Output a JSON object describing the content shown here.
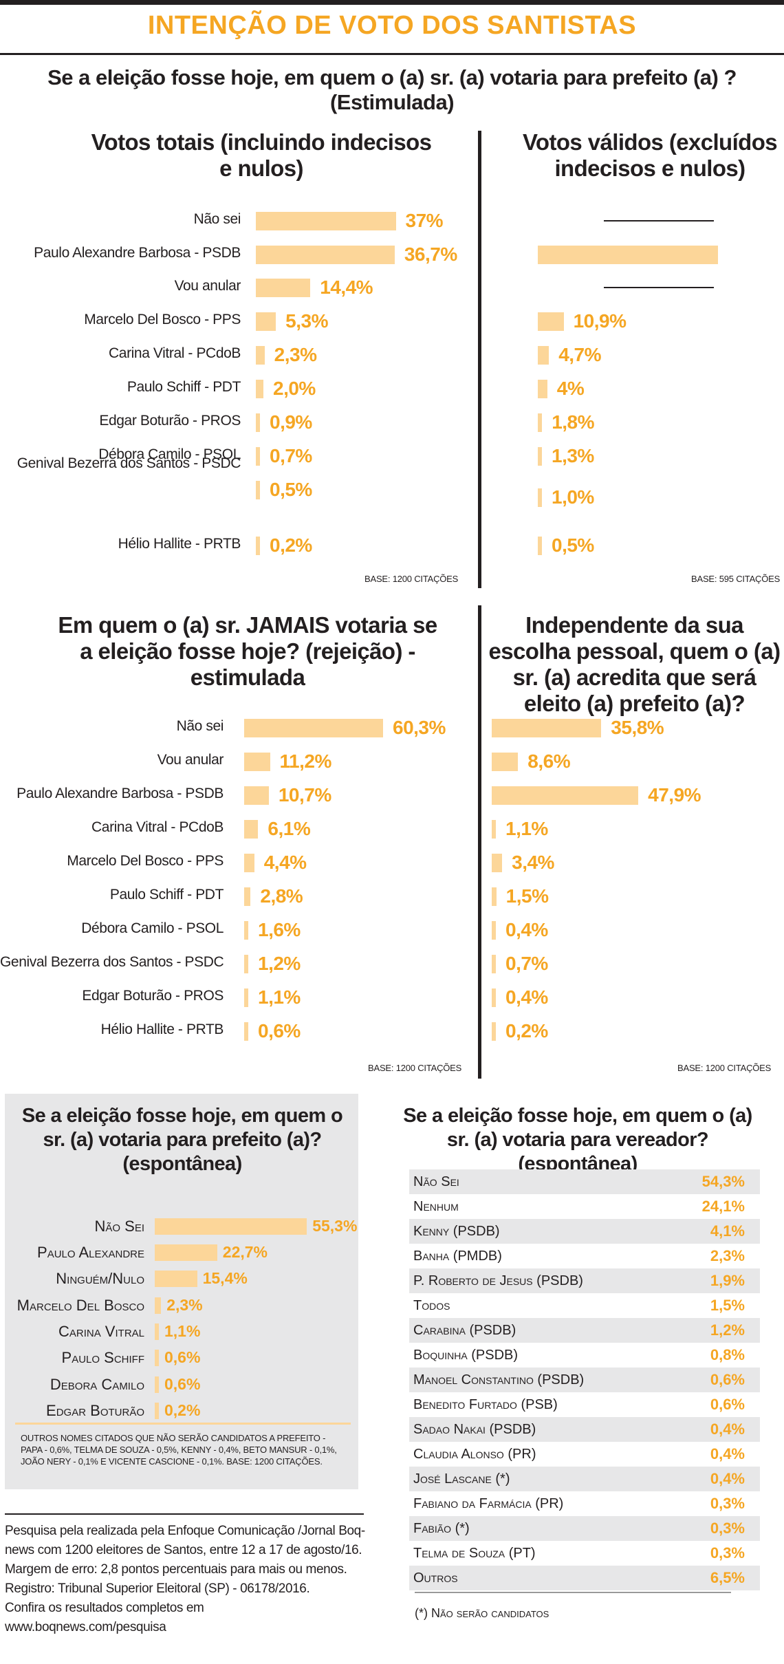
{
  "header": {
    "title": "INTENÇÃO DE VOTO DOS SANTISTAS",
    "question": "Se a eleição fosse hoje, em quem o (a) sr. (a) votaria para prefeito (a) ? (Estimulada)"
  },
  "colors": {
    "accent": "#f5a623",
    "bar": "#fcd699",
    "text": "#231f20",
    "grey": "#e7e7e8"
  },
  "chart_data": [
    {
      "type": "bar",
      "title": "Votos totais (incluindo indecisos e nulos)",
      "base": "BASE: 1200 CITAÇÕES",
      "categories": [
        "Não sei",
        "Paulo Alexandre Barbosa - PSDB",
        "Vou anular",
        "Marcelo Del Bosco - PPS",
        "Carina Vitral - PCdoB",
        "Paulo Schiff - PDT",
        "Edgar Boturão - PROS",
        "Débora Camilo - PSOL",
        "Genival Bezerra dos Santos - PSDC",
        "Hélio Hallite - PRTB"
      ],
      "values": [
        37,
        36.7,
        14.4,
        5.3,
        2.3,
        2.0,
        0.9,
        0.7,
        0.5,
        0.2
      ],
      "labels": [
        "37%",
        "36,7%",
        "14,4%",
        "5,3%",
        "2,3%",
        "2,0%",
        "0,9%",
        "0,7%",
        "0,5%",
        "0,2%"
      ]
    },
    {
      "type": "bar",
      "title": "Votos válidos (excluídos indecisos e nulos)",
      "base": "BASE: 595 CITAÇÕES",
      "categories": [
        "Não sei",
        "Paulo Alexandre Barbosa - PSDB",
        "Vou anular",
        "Marcelo Del Bosco - PPS",
        "Carina Vitral - PCdoB",
        "Paulo Schiff - PDT",
        "Edgar Boturão - PROS",
        "Débora Camilo - PSOL",
        "Genival Bezerra dos Santos - PSDC",
        "Hélio Hallite - PRTB"
      ],
      "values": [
        null,
        75.9,
        null,
        10.9,
        4.7,
        4,
        1.8,
        1.3,
        1.0,
        0.5
      ],
      "labels": [
        "",
        "",
        "",
        "10,9%",
        "4,7%",
        "4%",
        "1,8%",
        "1,3%",
        "1,0%",
        "0,5%"
      ]
    },
    {
      "type": "bar",
      "title": "Em quem o (a) sr. JAMAIS votaria se a eleição fosse hoje? (rejeição) - estimulada",
      "base": "BASE: 1200 CITAÇÕES",
      "categories": [
        "Não sei",
        "Vou anular",
        "Paulo Alexandre Barbosa - PSDB",
        "Carina Vitral - PCdoB",
        "Marcelo Del Bosco - PPS",
        "Paulo Schiff - PDT",
        "Débora Camilo - PSOL",
        "Genival Bezerra dos Santos - PSDC",
        "Edgar  Boturão - PROS",
        "Hélio Hallite - PRTB"
      ],
      "values": [
        60.3,
        11.2,
        10.7,
        6.1,
        4.4,
        2.8,
        1.6,
        1.2,
        1.1,
        0.6
      ],
      "labels": [
        "60,3%",
        "11,2%",
        "10,7%",
        "6,1%",
        "4,4%",
        "2,8%",
        "1,6%",
        "1,2%",
        "1,1%",
        "0,6%"
      ]
    },
    {
      "type": "bar",
      "title": "Independente da sua escolha pessoal, quem o (a) sr. (a) acredita que será eleito (a) prefeito (a)?",
      "base": "BASE: 1200 CITAÇÕES",
      "categories": [
        "Não sei",
        "Vou anular",
        "Paulo Alexandre Barbosa - PSDB",
        "Carina Vitral - PCdoB",
        "Marcelo Del Bosco - PPS",
        "Paulo Schiff - PDT",
        "Débora Camilo - PSOL",
        "Genival Bezerra dos Santos - PSDC",
        "Edgar  Boturão - PROS",
        "Hélio Hallite - PRTB"
      ],
      "values": [
        35.8,
        8.6,
        47.9,
        1.1,
        3.4,
        1.5,
        0.4,
        0.7,
        0.4,
        0.2
      ],
      "labels": [
        "35,8%",
        "8,6%",
        "47,9%",
        "1,1%",
        "3,4%",
        "1,5%",
        "0,4%",
        "0,7%",
        "0,4%",
        "0,2%"
      ]
    },
    {
      "type": "bar",
      "title": "Se a eleição fosse hoje, em quem o sr. (a) votaria para prefeito (a)? (espontânea)",
      "categories": [
        "Não Sei",
        "Paulo Alexandre",
        "Ninguém/Nulo",
        "Marcelo Del Bosco",
        "Carina Vitral",
        "Paulo Schiff",
        "Debora Camilo",
        "Edgar Boturão"
      ],
      "values": [
        55.3,
        22.7,
        15.4,
        2.3,
        1.1,
        0.6,
        0.6,
        0.2
      ],
      "labels": [
        "55,3%",
        "22,7%",
        "15,4%",
        "2,3%",
        "1,1%",
        "0,6%",
        "0,6%",
        "0,2%"
      ],
      "note": "OUTROS NOMES CITADOS QUE NÃO SERÃO CANDIDATOS A PREFEITO - PAPA - 0,6%, TELMA DE SOUZA - 0,5%, KENNY - 0,4%, BETO MANSUR - 0,1%, JOÃO NERY - 0,1% E VICENTE CASCIONE - 0,1%. BASE: 1200 CITAÇÕES."
    },
    {
      "type": "table",
      "title": "Se a eleição fosse hoje, em quem o (a) sr. (a) votaria para vereador? (espontânea)",
      "rows": [
        [
          "Não Sei",
          "54,3%"
        ],
        [
          "Nenhum",
          "24,1%"
        ],
        [
          "Kenny (PSDB)",
          "4,1%"
        ],
        [
          "Banha (PMDB)",
          "2,3%"
        ],
        [
          "P. Roberto de Jesus (PSDB)",
          "1,9%"
        ],
        [
          "Todos",
          "1,5%"
        ],
        [
          "Carabina (PSDB)",
          "1,2%"
        ],
        [
          "Boquinha (PSDB)",
          "0,8%"
        ],
        [
          "Manoel Constantino (PSDB)",
          "0,6%"
        ],
        [
          "Benedito Furtado (PSB)",
          "0,6%"
        ],
        [
          "Sadao Nakai (PSDB)",
          "0,4%"
        ],
        [
          "Claudia Alonso (PR)",
          "0,4%"
        ],
        [
          "José Lascane (*)",
          "0,4%"
        ],
        [
          "Fabiano da Farmácia (PR)",
          "0,3%"
        ],
        [
          "Fabião (*)",
          "0,3%"
        ],
        [
          "Telma de Souza (PT)",
          "0,3%"
        ],
        [
          "Outros",
          "6,5%"
        ]
      ],
      "footnote": "(*) Não serão candidatos"
    }
  ],
  "footer": {
    "lines": [
      "Pesquisa pela realizada pela Enfoque Comunicação /Jornal Boq-",
      "news com 1200 eleitores de Santos, entre 12 a 17 de agosto/16.",
      "Margem de erro: 2,8 pontos percentuais para mais ou menos.",
      "Registro: Tribunal Superior Eleitoral (SP) - 06178/2016.",
      "Confira os resultados completos em www.boqnews.com/pesquisa"
    ]
  }
}
